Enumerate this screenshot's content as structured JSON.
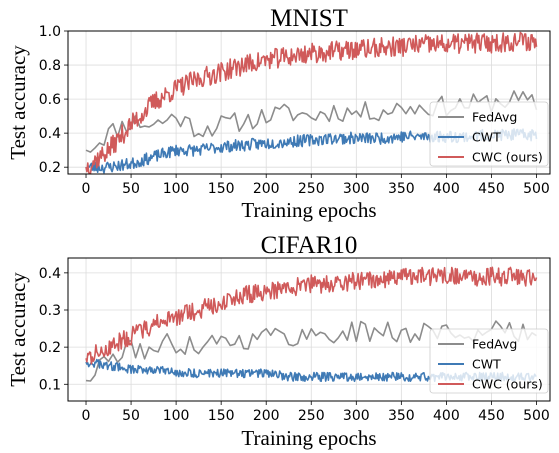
{
  "chart_data": [
    {
      "type": "line",
      "title": "MNIST",
      "xlabel": "Training epochs",
      "ylabel": "Test accuracy",
      "xlim": [
        -20,
        515
      ],
      "ylim": [
        0.16,
        1.0
      ],
      "xticks": [
        0,
        50,
        100,
        150,
        200,
        250,
        300,
        350,
        400,
        450,
        500
      ],
      "yticks": [
        0.2,
        0.4,
        0.6,
        0.8,
        1.0
      ],
      "ytick_labels": [
        "0.2",
        "0.4",
        "0.6",
        "0.8",
        "1.0"
      ],
      "grid": true,
      "legend_position": "right",
      "x": [
        0,
        25,
        50,
        75,
        100,
        125,
        150,
        175,
        200,
        225,
        250,
        275,
        300,
        325,
        350,
        375,
        400,
        425,
        450,
        475,
        500
      ],
      "series": [
        {
          "name": "FedAvg",
          "color": "#8c8c8c",
          "values": [
            0.3,
            0.4,
            0.47,
            0.45,
            0.5,
            0.42,
            0.45,
            0.47,
            0.5,
            0.52,
            0.5,
            0.53,
            0.52,
            0.53,
            0.55,
            0.55,
            0.56,
            0.57,
            0.58,
            0.6,
            0.57
          ]
        },
        {
          "name": "CWT",
          "color": "#3f7ab5",
          "values": [
            0.2,
            0.2,
            0.22,
            0.26,
            0.3,
            0.3,
            0.32,
            0.33,
            0.34,
            0.35,
            0.36,
            0.37,
            0.37,
            0.37,
            0.38,
            0.38,
            0.38,
            0.38,
            0.39,
            0.39,
            0.39
          ]
        },
        {
          "name": "CWC (ours)",
          "color": "#d05a5a",
          "values": [
            0.2,
            0.3,
            0.45,
            0.58,
            0.66,
            0.72,
            0.76,
            0.8,
            0.83,
            0.85,
            0.87,
            0.88,
            0.89,
            0.9,
            0.91,
            0.92,
            0.92,
            0.93,
            0.93,
            0.94,
            0.94
          ]
        }
      ]
    },
    {
      "type": "line",
      "title": "CIFAR10",
      "xlabel": "Training epochs",
      "ylabel": "Test accuracy",
      "xlim": [
        -20,
        515
      ],
      "ylim": [
        0.055,
        0.44
      ],
      "xticks": [
        0,
        50,
        100,
        150,
        200,
        250,
        300,
        350,
        400,
        450,
        500
      ],
      "yticks": [
        0.1,
        0.2,
        0.3,
        0.4
      ],
      "ytick_labels": [
        "0.1",
        "0.2",
        "0.3",
        "0.4"
      ],
      "grid": true,
      "legend_position": "right",
      "x": [
        0,
        25,
        50,
        75,
        100,
        125,
        150,
        175,
        200,
        225,
        250,
        275,
        300,
        325,
        350,
        375,
        400,
        425,
        450,
        475,
        500
      ],
      "series": [
        {
          "name": "FedAvg",
          "color": "#8c8c8c",
          "values": [
            0.11,
            0.17,
            0.19,
            0.2,
            0.21,
            0.21,
            0.22,
            0.22,
            0.23,
            0.23,
            0.23,
            0.24,
            0.24,
            0.24,
            0.24,
            0.24,
            0.24,
            0.24,
            0.24,
            0.24,
            0.23
          ]
        },
        {
          "name": "CWT",
          "color": "#3f7ab5",
          "values": [
            0.16,
            0.15,
            0.14,
            0.14,
            0.13,
            0.13,
            0.13,
            0.13,
            0.13,
            0.12,
            0.12,
            0.12,
            0.12,
            0.12,
            0.12,
            0.12,
            0.12,
            0.12,
            0.12,
            0.12,
            0.12
          ]
        },
        {
          "name": "CWC (ours)",
          "color": "#d05a5a",
          "values": [
            0.17,
            0.2,
            0.23,
            0.26,
            0.28,
            0.3,
            0.32,
            0.34,
            0.35,
            0.36,
            0.37,
            0.37,
            0.38,
            0.38,
            0.39,
            0.39,
            0.39,
            0.39,
            0.39,
            0.39,
            0.38
          ]
        }
      ]
    }
  ]
}
